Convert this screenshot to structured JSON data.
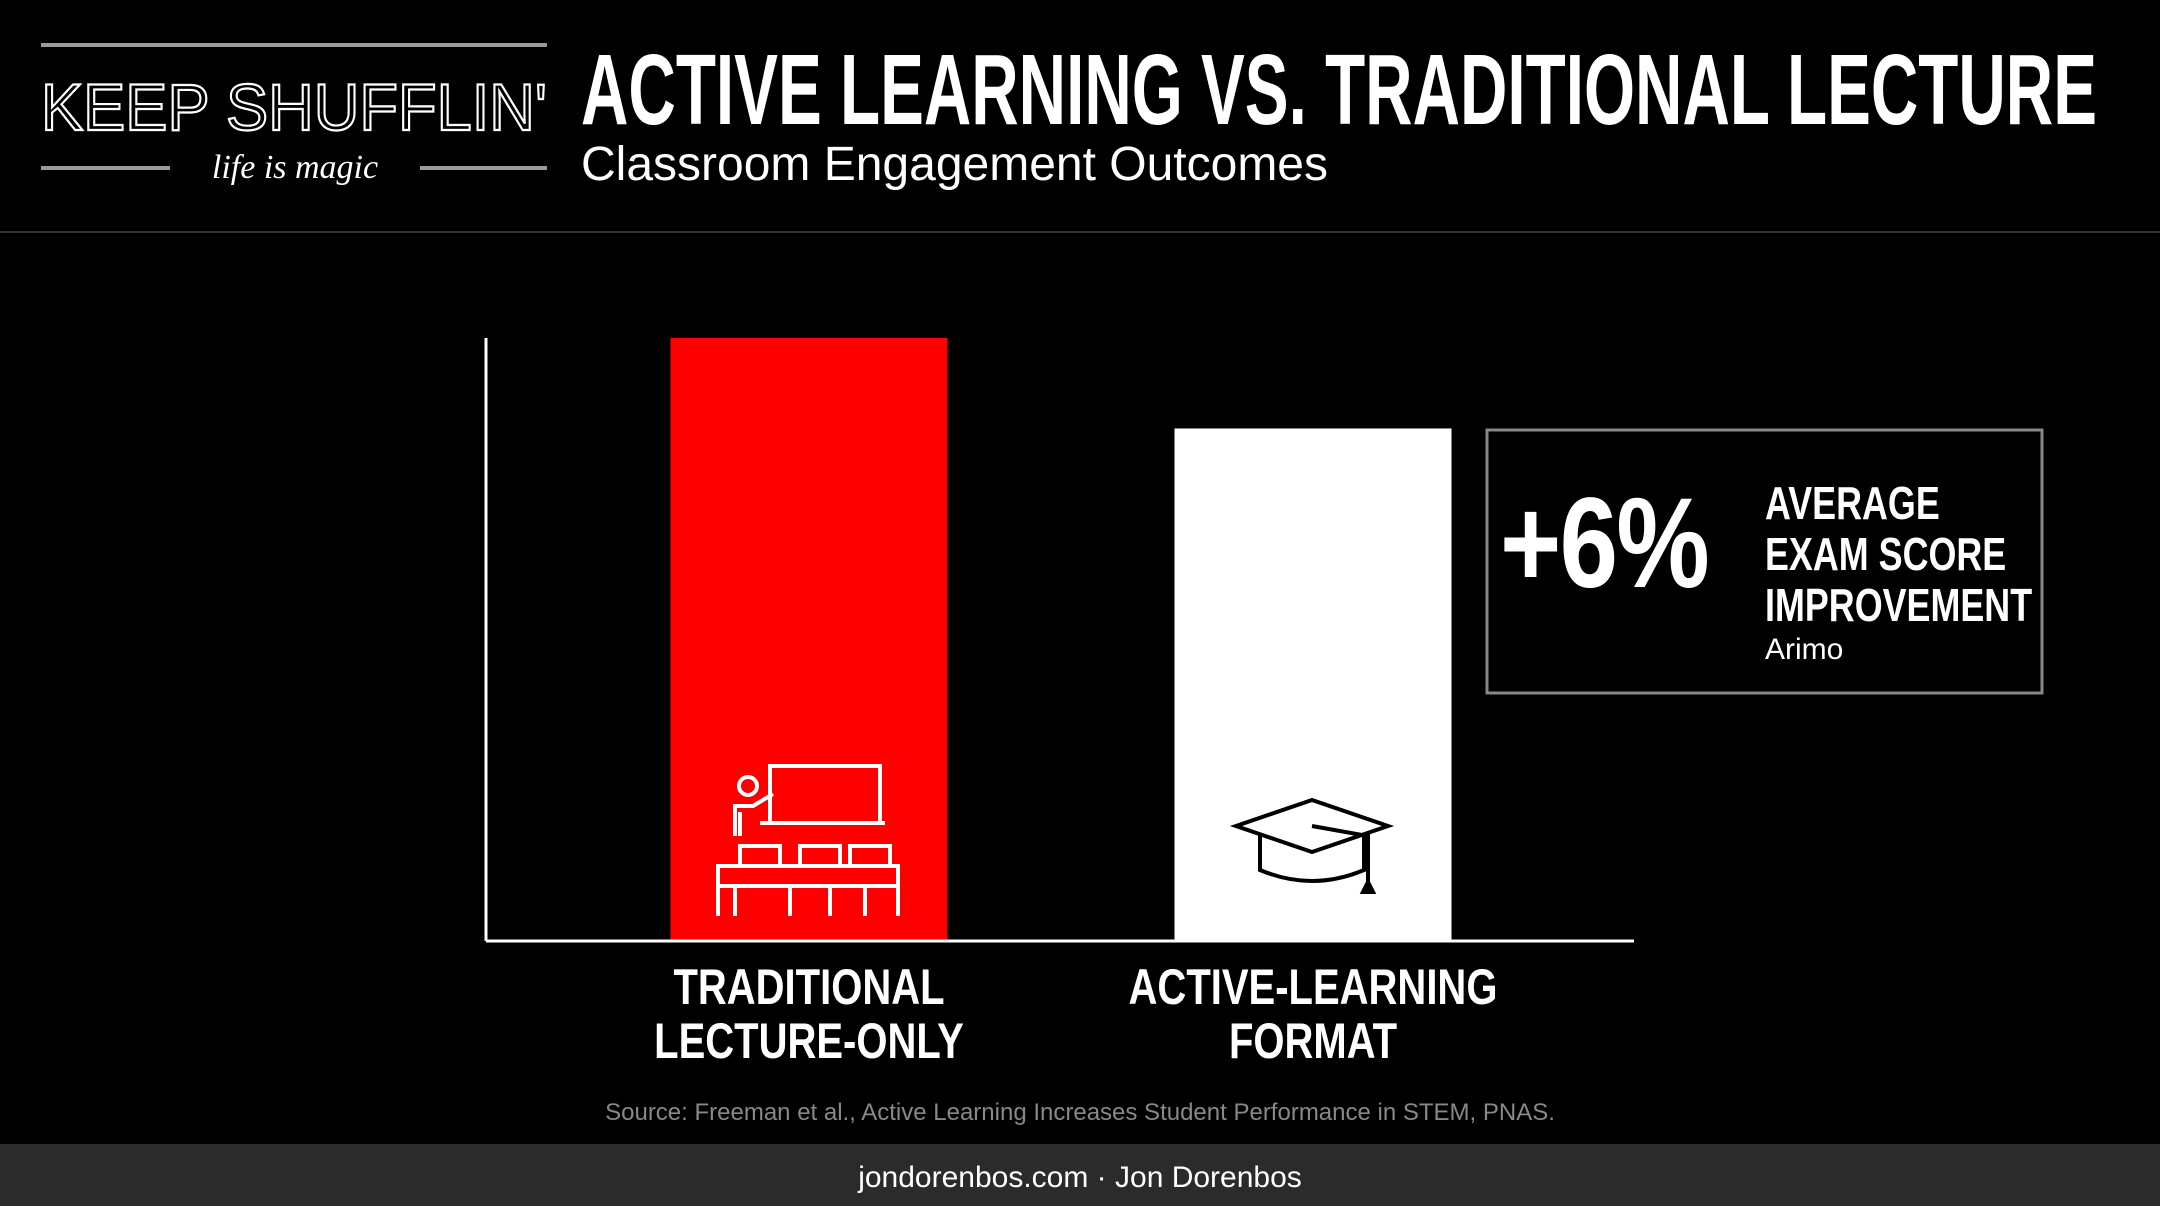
{
  "logo": {
    "name": "KEEP SHUFFLIN'",
    "tagline": "life is magic"
  },
  "chart_data": {
    "type": "bar",
    "title": "ACTIVE LEARNING VS. TRADITIONAL LECTURE",
    "subtitle": "Classroom Engagement Outcomes",
    "categories": [
      "TRADITIONAL\nLECTURE-ONLY",
      "ACTIVE-LEARNING\nFORMAT"
    ],
    "values": [
      100,
      85
    ],
    "colors": [
      "#ff0000",
      "#ffffff"
    ],
    "ylim": [
      0,
      100
    ],
    "annotation": {
      "headline": "+6%",
      "text": "AVERAGE\nEXAM SCORE\nIMPROVEMENT",
      "note": "Arimo"
    },
    "source": "Source: Freeman et al., Active Learning Increases Student Performance in STEM, PNAS."
  },
  "footer": "jondorenbos.com · Jon Dorenbos"
}
